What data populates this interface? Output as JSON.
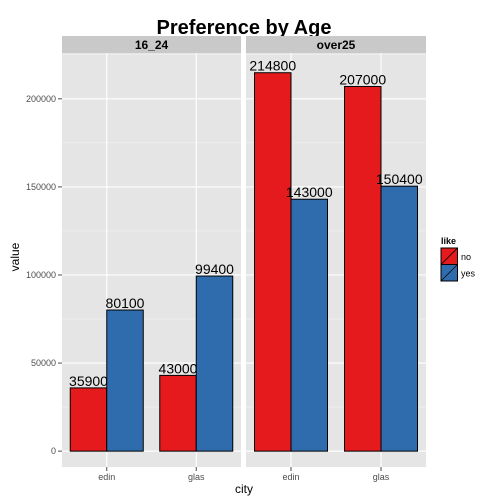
{
  "chart_data": {
    "type": "bar",
    "title": "Preference by Age",
    "xlabel": "city",
    "ylabel": "value",
    "ylim": [
      -9000,
      226000
    ],
    "yticks": [
      0,
      50000,
      100000,
      150000,
      200000
    ],
    "grid": true,
    "legend": {
      "title": "like",
      "position": "right",
      "entries": [
        {
          "name": "no",
          "color": "#E41A1C"
        },
        {
          "name": "yes",
          "color": "#2E6CAE"
        }
      ]
    },
    "facets": [
      {
        "label": "16_24",
        "categories": [
          "edin",
          "glas"
        ],
        "series": [
          {
            "name": "no",
            "values": [
              35900,
              43000
            ]
          },
          {
            "name": "yes",
            "values": [
              80100,
              99400
            ]
          }
        ]
      },
      {
        "label": "over25",
        "categories": [
          "edin",
          "glas"
        ],
        "series": [
          {
            "name": "no",
            "values": [
              214800,
              207000
            ]
          },
          {
            "name": "yes",
            "values": [
              143000,
              150400
            ]
          }
        ]
      }
    ]
  },
  "colors": {
    "panel_bg": "#E5E5E5",
    "strip_bg": "#C9C9C9",
    "grid_major": "#FFFFFF",
    "grid_minor": "#F2F2F2",
    "no": "#E41A1C",
    "yes": "#2E6CAE"
  }
}
